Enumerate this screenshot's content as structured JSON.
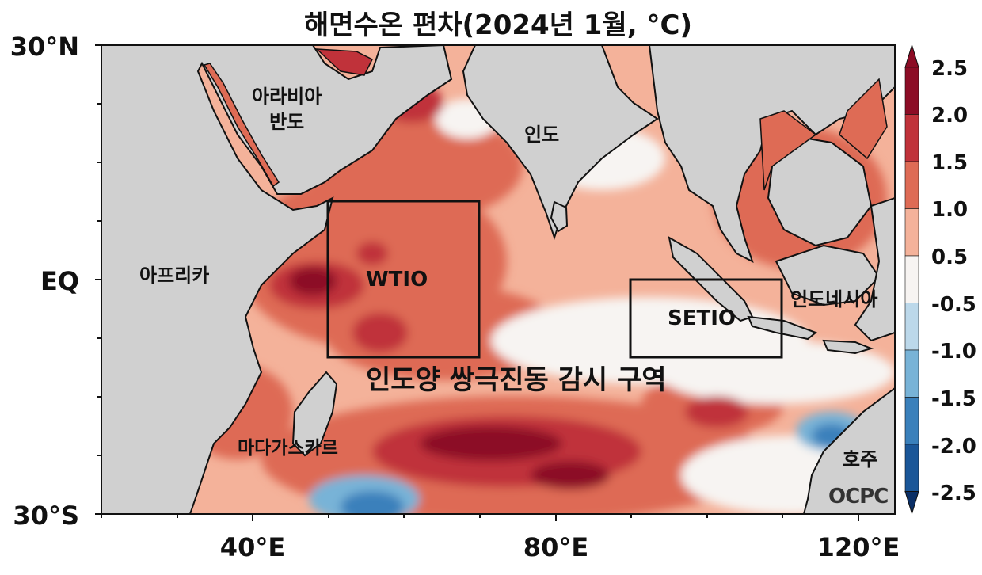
{
  "title": "해면수온 편차(2024년 1월, °C)",
  "axes": {
    "lat_labels": [
      "30°N",
      "EQ",
      "30°S"
    ],
    "lon_labels": [
      "40°E",
      "80°E",
      "120°E"
    ]
  },
  "colorbar": {
    "labels": [
      "2.5",
      "2.0",
      "1.5",
      "1.0",
      "0.5",
      "-0.5",
      "-1.0",
      "-1.5",
      "-2.0",
      "-2.5"
    ],
    "colors": [
      "#8c0c25",
      "#c0323a",
      "#de6b55",
      "#f4b29a",
      "#f7f4f2",
      "#bcd8ea",
      "#78b3d7",
      "#3a80bb",
      "#1a5698",
      "#0a2f66"
    ]
  },
  "regions": {
    "box_labels": [
      "WTIO",
      "SETIO"
    ],
    "caption": "인도양 쌍극진동 감시 구역"
  },
  "places": {
    "arabia": "아라비아\n반도",
    "arabia_line1": "아라비아",
    "arabia_line2": "반도",
    "india": "인도",
    "africa": "아프리카",
    "indonesia": "인도네시아",
    "madagascar": "마다가스카르",
    "australia": "호주"
  },
  "logo": "OCPC",
  "palette": {
    "land": "#d0d0d0",
    "coast": "#111111"
  }
}
